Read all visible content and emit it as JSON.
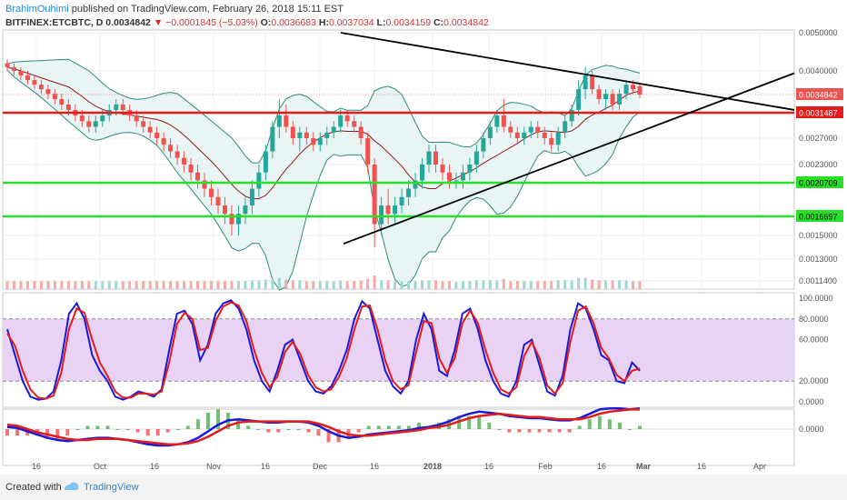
{
  "header": {
    "author": "BrahimOuhimi",
    "published_text": "published on TradingView.com, February 26, 2018 15:11 EST",
    "symbol": "BITFINEX:ETCBTC, D",
    "last_price": "0.0034842",
    "change": "−0.0001845 (−5.03%)",
    "o_label": "O:",
    "o_value": "0.0036683",
    "h_label": "H:",
    "h_value": "0.0037034",
    "l_label": "L:",
    "l_value": "0.0034159",
    "c_label": "C:",
    "c_value": "0.0034842"
  },
  "footer": {
    "created_with": "Created with",
    "brand": "TradingView"
  },
  "colors": {
    "up": "#26a69a",
    "down": "#ef5350",
    "resistance": "#e31b1b",
    "support": "#29e029",
    "trend": "#000000",
    "bollinger": "#2e8b7a",
    "bollinger_fill": "#e3f2f1",
    "stoch_k": "#1a1ad6",
    "stoch_d": "#e31b1b",
    "stoch_band": "#e8d3f5",
    "macd": "#1a1ad6",
    "signal": "#e31b1b"
  },
  "chart_data": [
    {
      "type": "candlestick",
      "y_axis_labels": [
        "0.0050000",
        "0.0040000",
        "0.0034842",
        "0.0031487",
        "0.0027000",
        "0.0023000",
        "0.0020709",
        "0.0016697",
        "0.0015000",
        "0.0013000",
        "0.0011400"
      ],
      "last_price_label": "0.0034842",
      "levels": [
        {
          "label": "0.0031487",
          "value": 0.0031487,
          "color": "resistance"
        },
        {
          "label": "0.0020709",
          "value": 0.0020709,
          "color": "support"
        },
        {
          "label": "0.0016697",
          "value": 0.0016697,
          "color": "support"
        }
      ],
      "x_axis_labels": [
        "16",
        "Oct",
        "16",
        "Nov",
        "16",
        "Dec",
        "16",
        "2018",
        "16",
        "Feb",
        "16",
        "Mar",
        "16",
        "Apr"
      ],
      "candles": [
        [
          0.0042,
          0.0043,
          0.004,
          0.0041
        ],
        [
          0.0041,
          0.0042,
          0.0039,
          0.004
        ],
        [
          0.004,
          0.0041,
          0.0038,
          0.0039
        ],
        [
          0.0039,
          0.004,
          0.0037,
          0.0038
        ],
        [
          0.0038,
          0.0039,
          0.0036,
          0.0037
        ],
        [
          0.0037,
          0.0038,
          0.0035,
          0.0036
        ],
        [
          0.0036,
          0.0037,
          0.0034,
          0.0035
        ],
        [
          0.0035,
          0.0036,
          0.0033,
          0.0034
        ],
        [
          0.0034,
          0.0035,
          0.0032,
          0.0033
        ],
        [
          0.0033,
          0.0034,
          0.0031,
          0.0032
        ],
        [
          0.0032,
          0.0033,
          0.003,
          0.0031
        ],
        [
          0.0031,
          0.0032,
          0.0029,
          0.003
        ],
        [
          0.003,
          0.0031,
          0.0028,
          0.0029
        ],
        [
          0.0029,
          0.0031,
          0.0028,
          0.003
        ],
        [
          0.003,
          0.0032,
          0.0029,
          0.0031
        ],
        [
          0.0031,
          0.0033,
          0.003,
          0.0032
        ],
        [
          0.0032,
          0.0034,
          0.0031,
          0.0033
        ],
        [
          0.0033,
          0.0034,
          0.0031,
          0.0032
        ],
        [
          0.0032,
          0.0033,
          0.003,
          0.0031
        ],
        [
          0.0031,
          0.0032,
          0.0029,
          0.003
        ],
        [
          0.003,
          0.0031,
          0.0028,
          0.0029
        ],
        [
          0.0029,
          0.003,
          0.0027,
          0.0028
        ],
        [
          0.0028,
          0.0029,
          0.0026,
          0.0027
        ],
        [
          0.0027,
          0.0028,
          0.0025,
          0.0026
        ],
        [
          0.0026,
          0.0027,
          0.0024,
          0.0025
        ],
        [
          0.0025,
          0.0026,
          0.0023,
          0.0024
        ],
        [
          0.0024,
          0.0025,
          0.0022,
          0.0023
        ],
        [
          0.0023,
          0.0024,
          0.0021,
          0.0022
        ],
        [
          0.0022,
          0.0023,
          0.002,
          0.0021
        ],
        [
          0.0021,
          0.0022,
          0.0019,
          0.002
        ],
        [
          0.002,
          0.0021,
          0.0018,
          0.0019
        ],
        [
          0.0019,
          0.002,
          0.0017,
          0.0018
        ],
        [
          0.0018,
          0.0019,
          0.0016,
          0.0017
        ],
        [
          0.0017,
          0.0018,
          0.0015,
          0.0016
        ],
        [
          0.0016,
          0.0018,
          0.0015,
          0.0017
        ],
        [
          0.0017,
          0.0019,
          0.0016,
          0.0018
        ],
        [
          0.0018,
          0.0021,
          0.0017,
          0.002
        ],
        [
          0.002,
          0.0023,
          0.0019,
          0.0022
        ],
        [
          0.0022,
          0.0026,
          0.0021,
          0.0025
        ],
        [
          0.0025,
          0.003,
          0.0024,
          0.0029
        ],
        [
          0.0029,
          0.0034,
          0.0027,
          0.0031
        ],
        [
          0.0031,
          0.0033,
          0.0028,
          0.0029
        ],
        [
          0.0029,
          0.003,
          0.0026,
          0.0027
        ],
        [
          0.0027,
          0.0029,
          0.0025,
          0.0028
        ],
        [
          0.0028,
          0.0029,
          0.0026,
          0.0027
        ],
        [
          0.0027,
          0.0028,
          0.0025,
          0.0026
        ],
        [
          0.0026,
          0.0028,
          0.0025,
          0.0027
        ],
        [
          0.0027,
          0.0029,
          0.0026,
          0.0028
        ],
        [
          0.0028,
          0.003,
          0.0027,
          0.0029
        ],
        [
          0.0029,
          0.0032,
          0.0028,
          0.0031
        ],
        [
          0.0031,
          0.0032,
          0.0029,
          0.003
        ],
        [
          0.003,
          0.0031,
          0.0028,
          0.0029
        ],
        [
          0.0029,
          0.003,
          0.0026,
          0.0027
        ],
        [
          0.0027,
          0.0028,
          0.0022,
          0.0023
        ],
        [
          0.0023,
          0.0024,
          0.0014,
          0.0016
        ],
        [
          0.0016,
          0.0019,
          0.0015,
          0.0018
        ],
        [
          0.0018,
          0.002,
          0.0016,
          0.0017
        ],
        [
          0.0017,
          0.0019,
          0.0016,
          0.0018
        ],
        [
          0.0018,
          0.002,
          0.0017,
          0.0019
        ],
        [
          0.0019,
          0.0021,
          0.0018,
          0.002
        ],
        [
          0.002,
          0.0022,
          0.0019,
          0.0021
        ],
        [
          0.0021,
          0.0024,
          0.002,
          0.0023
        ],
        [
          0.0023,
          0.0026,
          0.0022,
          0.0025
        ],
        [
          0.0025,
          0.0026,
          0.0022,
          0.0023
        ],
        [
          0.0023,
          0.0024,
          0.0021,
          0.0022
        ],
        [
          0.0022,
          0.0023,
          0.002,
          0.0021
        ],
        [
          0.0021,
          0.0022,
          0.002,
          0.0021
        ],
        [
          0.0021,
          0.0023,
          0.002,
          0.0022
        ],
        [
          0.0022,
          0.0024,
          0.0021,
          0.0023
        ],
        [
          0.0023,
          0.0026,
          0.0022,
          0.0025
        ],
        [
          0.0025,
          0.0028,
          0.0024,
          0.0027
        ],
        [
          0.0027,
          0.003,
          0.0026,
          0.0029
        ],
        [
          0.0029,
          0.0032,
          0.0028,
          0.0031
        ],
        [
          0.0031,
          0.0034,
          0.0028,
          0.0029
        ],
        [
          0.0029,
          0.003,
          0.0027,
          0.0028
        ],
        [
          0.0028,
          0.0029,
          0.0026,
          0.0027
        ],
        [
          0.0027,
          0.0029,
          0.0026,
          0.0028
        ],
        [
          0.0028,
          0.003,
          0.0027,
          0.0029
        ],
        [
          0.0029,
          0.003,
          0.0027,
          0.0028
        ],
        [
          0.0028,
          0.0029,
          0.0026,
          0.0027
        ],
        [
          0.0027,
          0.0028,
          0.0025,
          0.0026
        ],
        [
          0.0026,
          0.0029,
          0.0025,
          0.0028
        ],
        [
          0.0028,
          0.0031,
          0.0027,
          0.003
        ],
        [
          0.003,
          0.0033,
          0.0029,
          0.0032
        ],
        [
          0.0032,
          0.0038,
          0.0031,
          0.0036
        ],
        [
          0.0036,
          0.0041,
          0.0034,
          0.0039
        ],
        [
          0.0039,
          0.004,
          0.0035,
          0.0036
        ],
        [
          0.0036,
          0.0037,
          0.0033,
          0.0034
        ],
        [
          0.0034,
          0.0036,
          0.0032,
          0.0035
        ],
        [
          0.0035,
          0.0036,
          0.0032,
          0.0033
        ],
        [
          0.0033,
          0.0036,
          0.0032,
          0.0035
        ],
        [
          0.0035,
          0.0038,
          0.0034,
          0.0037
        ],
        [
          0.0037,
          0.0038,
          0.0035,
          0.0036
        ],
        [
          0.0036683,
          0.0037034,
          0.0034159,
          0.0034842
        ]
      ]
    },
    {
      "type": "line",
      "indicator": "stochastic",
      "y_axis_labels": [
        "100.0000",
        "80.0000",
        "60.0000",
        "20.0000",
        "0.0000"
      ],
      "band": [
        20,
        80
      ],
      "series": [
        {
          "color": "stoch_k",
          "values": [
            70,
            45,
            20,
            5,
            2,
            3,
            10,
            40,
            85,
            95,
            80,
            45,
            30,
            20,
            5,
            2,
            5,
            10,
            8,
            5,
            12,
            50,
            85,
            88,
            75,
            40,
            55,
            85,
            95,
            98,
            90,
            70,
            40,
            20,
            10,
            30,
            55,
            60,
            40,
            20,
            10,
            8,
            15,
            30,
            50,
            80,
            97,
            90,
            60,
            30,
            15,
            8,
            20,
            60,
            85,
            70,
            30,
            25,
            50,
            85,
            90,
            70,
            40,
            20,
            8,
            5,
            20,
            55,
            60,
            35,
            10,
            6,
            25,
            70,
            95,
            90,
            70,
            45,
            40,
            20,
            18,
            38,
            30
          ]
        },
        {
          "color": "stoch_d",
          "values": [
            66,
            54,
            30,
            12,
            4,
            3,
            6,
            28,
            70,
            90,
            86,
            60,
            38,
            25,
            10,
            4,
            4,
            8,
            8,
            7,
            10,
            38,
            75,
            86,
            80,
            50,
            52,
            78,
            92,
            96,
            93,
            78,
            50,
            28,
            14,
            24,
            48,
            58,
            46,
            26,
            14,
            10,
            12,
            24,
            42,
            70,
            92,
            93,
            70,
            40,
            20,
            12,
            16,
            48,
            78,
            76,
            42,
            28,
            42,
            76,
            88,
            76,
            50,
            28,
            12,
            8,
            14,
            44,
            58,
            42,
            16,
            8,
            18,
            58,
            88,
            92,
            76,
            52,
            42,
            26,
            20,
            30,
            32
          ]
        }
      ]
    },
    {
      "type": "line",
      "indicator": "macd",
      "y_axis_labels": [
        "0.0000"
      ],
      "series": [
        {
          "color": "macd",
          "values": [
            2e-05,
            1e-05,
            -2e-05,
            -5e-05,
            -8e-05,
            -0.0001,
            -0.00011,
            -0.0001,
            -9e-05,
            -8e-05,
            -8e-05,
            -9e-05,
            -0.0001,
            -0.00012,
            -0.00014,
            -0.00015,
            -0.00015,
            -0.00014,
            -0.00012,
            -8e-05,
            -2e-05,
            4e-05,
            8e-05,
            9e-05,
            8e-05,
            7e-05,
            6e-05,
            6e-05,
            7e-05,
            7e-05,
            6e-05,
            3e-05,
            -2e-05,
            -6e-05,
            -8e-05,
            -7e-05,
            -5e-05,
            -4e-05,
            -3e-05,
            -2e-05,
            -1e-05,
            1e-05,
            2e-05,
            4e-05,
            7e-05,
            0.00011,
            0.00014,
            0.00016,
            0.00015,
            0.00014,
            0.00012,
            0.00011,
            0.0001,
            0.0001,
            9e-05,
            8e-05,
            8e-05,
            0.0001,
            0.00014,
            0.00018,
            0.00019,
            0.00019,
            0.00018,
            0.00019
          ]
        },
        {
          "color": "signal",
          "values": [
            4e-05,
            3e-05,
            0.0,
            -3e-05,
            -5e-05,
            -7e-05,
            -9e-05,
            -0.0001,
            -0.0001,
            -9e-05,
            -9e-05,
            -9e-05,
            -0.0001,
            -0.00011,
            -0.00012,
            -0.00013,
            -0.00014,
            -0.00014,
            -0.00013,
            -0.00011,
            -7e-05,
            -2e-05,
            3e-05,
            6e-05,
            7e-05,
            7e-05,
            7e-05,
            7e-05,
            7e-05,
            7e-05,
            7e-05,
            5e-05,
            2e-05,
            -2e-05,
            -5e-05,
            -6e-05,
            -6e-05,
            -5e-05,
            -4e-05,
            -3e-05,
            -2e-05,
            -1e-05,
            1e-05,
            2e-05,
            4e-05,
            7e-05,
            0.0001,
            0.00012,
            0.00013,
            0.00014,
            0.00013,
            0.00012,
            0.00011,
            0.00011,
            0.0001,
            9e-05,
            9e-05,
            9e-05,
            0.00011,
            0.00014,
            0.00016,
            0.00017,
            0.00018,
            0.00018
          ]
        }
      ]
    }
  ]
}
